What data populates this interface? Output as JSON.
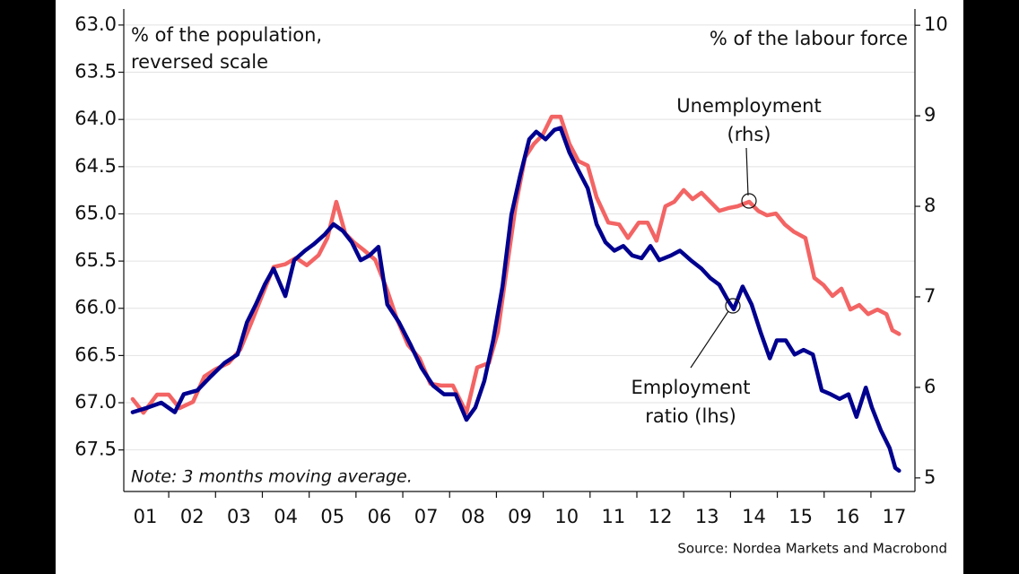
{
  "chart_data": {
    "type": "line",
    "left_axis_label": [
      "% of the population,",
      "reversed scale"
    ],
    "right_axis_label": "% of the labour force",
    "annotations": [
      {
        "lines": [
          "Unemployment",
          "(rhs)"
        ]
      },
      {
        "lines": [
          "Employment",
          "ratio (lhs)"
        ]
      }
    ],
    "note": "Note: 3 months moving average.",
    "source": "Source: Nordea Markets and Macrobond",
    "xlim": [
      2001.04,
      2017.94
    ],
    "xticks": [
      {
        "value": 2001.5,
        "label": "01"
      },
      {
        "value": 2002.5,
        "label": "02"
      },
      {
        "value": 2003.5,
        "label": "03"
      },
      {
        "value": 2004.5,
        "label": "04"
      },
      {
        "value": 2005.5,
        "label": "05"
      },
      {
        "value": 2006.5,
        "label": "06"
      },
      {
        "value": 2007.5,
        "label": "07"
      },
      {
        "value": 2008.5,
        "label": "08"
      },
      {
        "value": 2009.5,
        "label": "09"
      },
      {
        "value": 2010.5,
        "label": "10"
      },
      {
        "value": 2011.5,
        "label": "11"
      },
      {
        "value": 2012.5,
        "label": "12"
      },
      {
        "value": 2013.5,
        "label": "13"
      },
      {
        "value": 2014.5,
        "label": "14"
      },
      {
        "value": 2015.5,
        "label": "15"
      },
      {
        "value": 2016.5,
        "label": "16"
      },
      {
        "value": 2017.5,
        "label": "17"
      }
    ],
    "x_minor_ticks": [
      2002,
      2003,
      2004,
      2005,
      2006,
      2007,
      2008,
      2009,
      2010,
      2011,
      2012,
      2013,
      2014,
      2015,
      2016,
      2017
    ],
    "ylim": [
      62.83,
      67.94
    ],
    "y_reversed": true,
    "yticks": [
      {
        "value": 63,
        "label": "63.0"
      },
      63.5,
      {
        "value": 64,
        "label": "64.0"
      },
      64.5,
      {
        "value": 65,
        "label": "65.0"
      },
      65.5,
      {
        "value": 66,
        "label": "66.0"
      },
      66.5,
      {
        "value": 67,
        "label": "67.0"
      },
      67.5
    ],
    "y2lim": [
      4.85,
      10.18
    ],
    "y2ticks": [
      5,
      6,
      7,
      8,
      9,
      10
    ],
    "grid": true,
    "series": [
      {
        "name": "Employment ratio (lhs)",
        "color": "#00008f",
        "axis": "y",
        "x": [
          2001.23,
          2001.56,
          2001.84,
          2002.13,
          2002.32,
          2002.61,
          2002.9,
          2003.19,
          2003.47,
          2003.67,
          2003.86,
          2004.05,
          2004.24,
          2004.49,
          2004.68,
          2004.91,
          2005.1,
          2005.33,
          2005.52,
          2005.72,
          2005.91,
          2006.1,
          2006.29,
          2006.48,
          2006.67,
          2006.92,
          2007.17,
          2007.4,
          2007.65,
          2007.88,
          2008.13,
          2008.36,
          2008.55,
          2008.74,
          2008.93,
          2009.13,
          2009.32,
          2009.51,
          2009.7,
          2009.85,
          2010.05,
          2010.24,
          2010.37,
          2010.56,
          2010.75,
          2010.95,
          2011.14,
          2011.33,
          2011.52,
          2011.71,
          2011.9,
          2012.1,
          2012.29,
          2012.48,
          2012.73,
          2012.92,
          2013.15,
          2013.38,
          2013.57,
          2013.76,
          2013.95,
          2014.07,
          2014.26,
          2014.45,
          2014.64,
          2014.84,
          2014.99,
          2015.18,
          2015.37,
          2015.56,
          2015.76,
          2015.95,
          2016.14,
          2016.33,
          2016.52,
          2016.69,
          2016.89,
          2017.02,
          2017.21,
          2017.4,
          2017.52,
          2017.6
        ],
        "values": [
          67.1,
          67.05,
          67.0,
          67.1,
          66.91,
          66.87,
          66.72,
          66.58,
          66.49,
          66.15,
          65.96,
          65.75,
          65.58,
          65.87,
          65.49,
          65.39,
          65.32,
          65.22,
          65.11,
          65.18,
          65.3,
          65.49,
          65.44,
          65.35,
          65.96,
          66.15,
          66.39,
          66.63,
          66.82,
          66.91,
          66.91,
          67.18,
          67.05,
          66.77,
          66.34,
          65.77,
          65.01,
          64.59,
          64.21,
          64.13,
          64.21,
          64.11,
          64.09,
          64.35,
          64.54,
          64.73,
          65.11,
          65.3,
          65.39,
          65.34,
          65.44,
          65.47,
          65.34,
          65.49,
          65.44,
          65.39,
          65.49,
          65.58,
          65.68,
          65.75,
          65.92,
          66.01,
          65.77,
          65.96,
          66.25,
          66.53,
          66.34,
          66.34,
          66.49,
          66.44,
          66.49,
          66.87,
          66.91,
          66.96,
          66.91,
          67.15,
          66.84,
          67.05,
          67.29,
          67.48,
          67.69,
          67.72
        ]
      },
      {
        "name": "Unemployment (rhs)",
        "color": "#f36464",
        "axis": "y2",
        "x": [
          2001.23,
          2001.46,
          2001.75,
          2002.0,
          2002.23,
          2002.52,
          2002.76,
          2003.0,
          2003.28,
          2003.53,
          2003.76,
          2003.99,
          2004.24,
          2004.49,
          2004.72,
          2004.95,
          2005.2,
          2005.39,
          2005.58,
          2005.77,
          2005.96,
          2006.16,
          2006.41,
          2006.64,
          2006.87,
          2007.11,
          2007.36,
          2007.59,
          2007.82,
          2008.07,
          2008.36,
          2008.59,
          2008.84,
          2009.03,
          2009.22,
          2009.41,
          2009.61,
          2009.8,
          2009.99,
          2010.18,
          2010.37,
          2010.56,
          2010.75,
          2010.95,
          2011.14,
          2011.39,
          2011.62,
          2011.81,
          2012.04,
          2012.23,
          2012.42,
          2012.61,
          2012.8,
          2013.0,
          2013.19,
          2013.38,
          2013.57,
          2013.76,
          2013.95,
          2014.15,
          2014.4,
          2014.59,
          2014.78,
          2014.97,
          2015.16,
          2015.35,
          2015.6,
          2015.79,
          2015.99,
          2016.18,
          2016.37,
          2016.56,
          2016.75,
          2016.94,
          2017.14,
          2017.33,
          2017.46,
          2017.6
        ],
        "values": [
          5.87,
          5.72,
          5.92,
          5.92,
          5.77,
          5.84,
          6.12,
          6.2,
          6.27,
          6.42,
          6.71,
          7.01,
          7.33,
          7.36,
          7.43,
          7.35,
          7.46,
          7.65,
          8.05,
          7.7,
          7.6,
          7.52,
          7.41,
          7.11,
          6.76,
          6.47,
          6.32,
          6.04,
          6.02,
          6.02,
          5.72,
          6.22,
          6.27,
          6.61,
          7.31,
          8.0,
          8.54,
          8.69,
          8.79,
          8.99,
          8.99,
          8.69,
          8.5,
          8.45,
          8.1,
          7.82,
          7.8,
          7.65,
          7.82,
          7.82,
          7.62,
          8.0,
          8.05,
          8.18,
          8.08,
          8.15,
          8.05,
          7.95,
          7.98,
          8.0,
          8.05,
          7.95,
          7.9,
          7.92,
          7.8,
          7.72,
          7.65,
          7.21,
          7.13,
          7.01,
          7.09,
          6.86,
          6.91,
          6.81,
          6.86,
          6.81,
          6.63,
          6.59
        ]
      }
    ]
  }
}
